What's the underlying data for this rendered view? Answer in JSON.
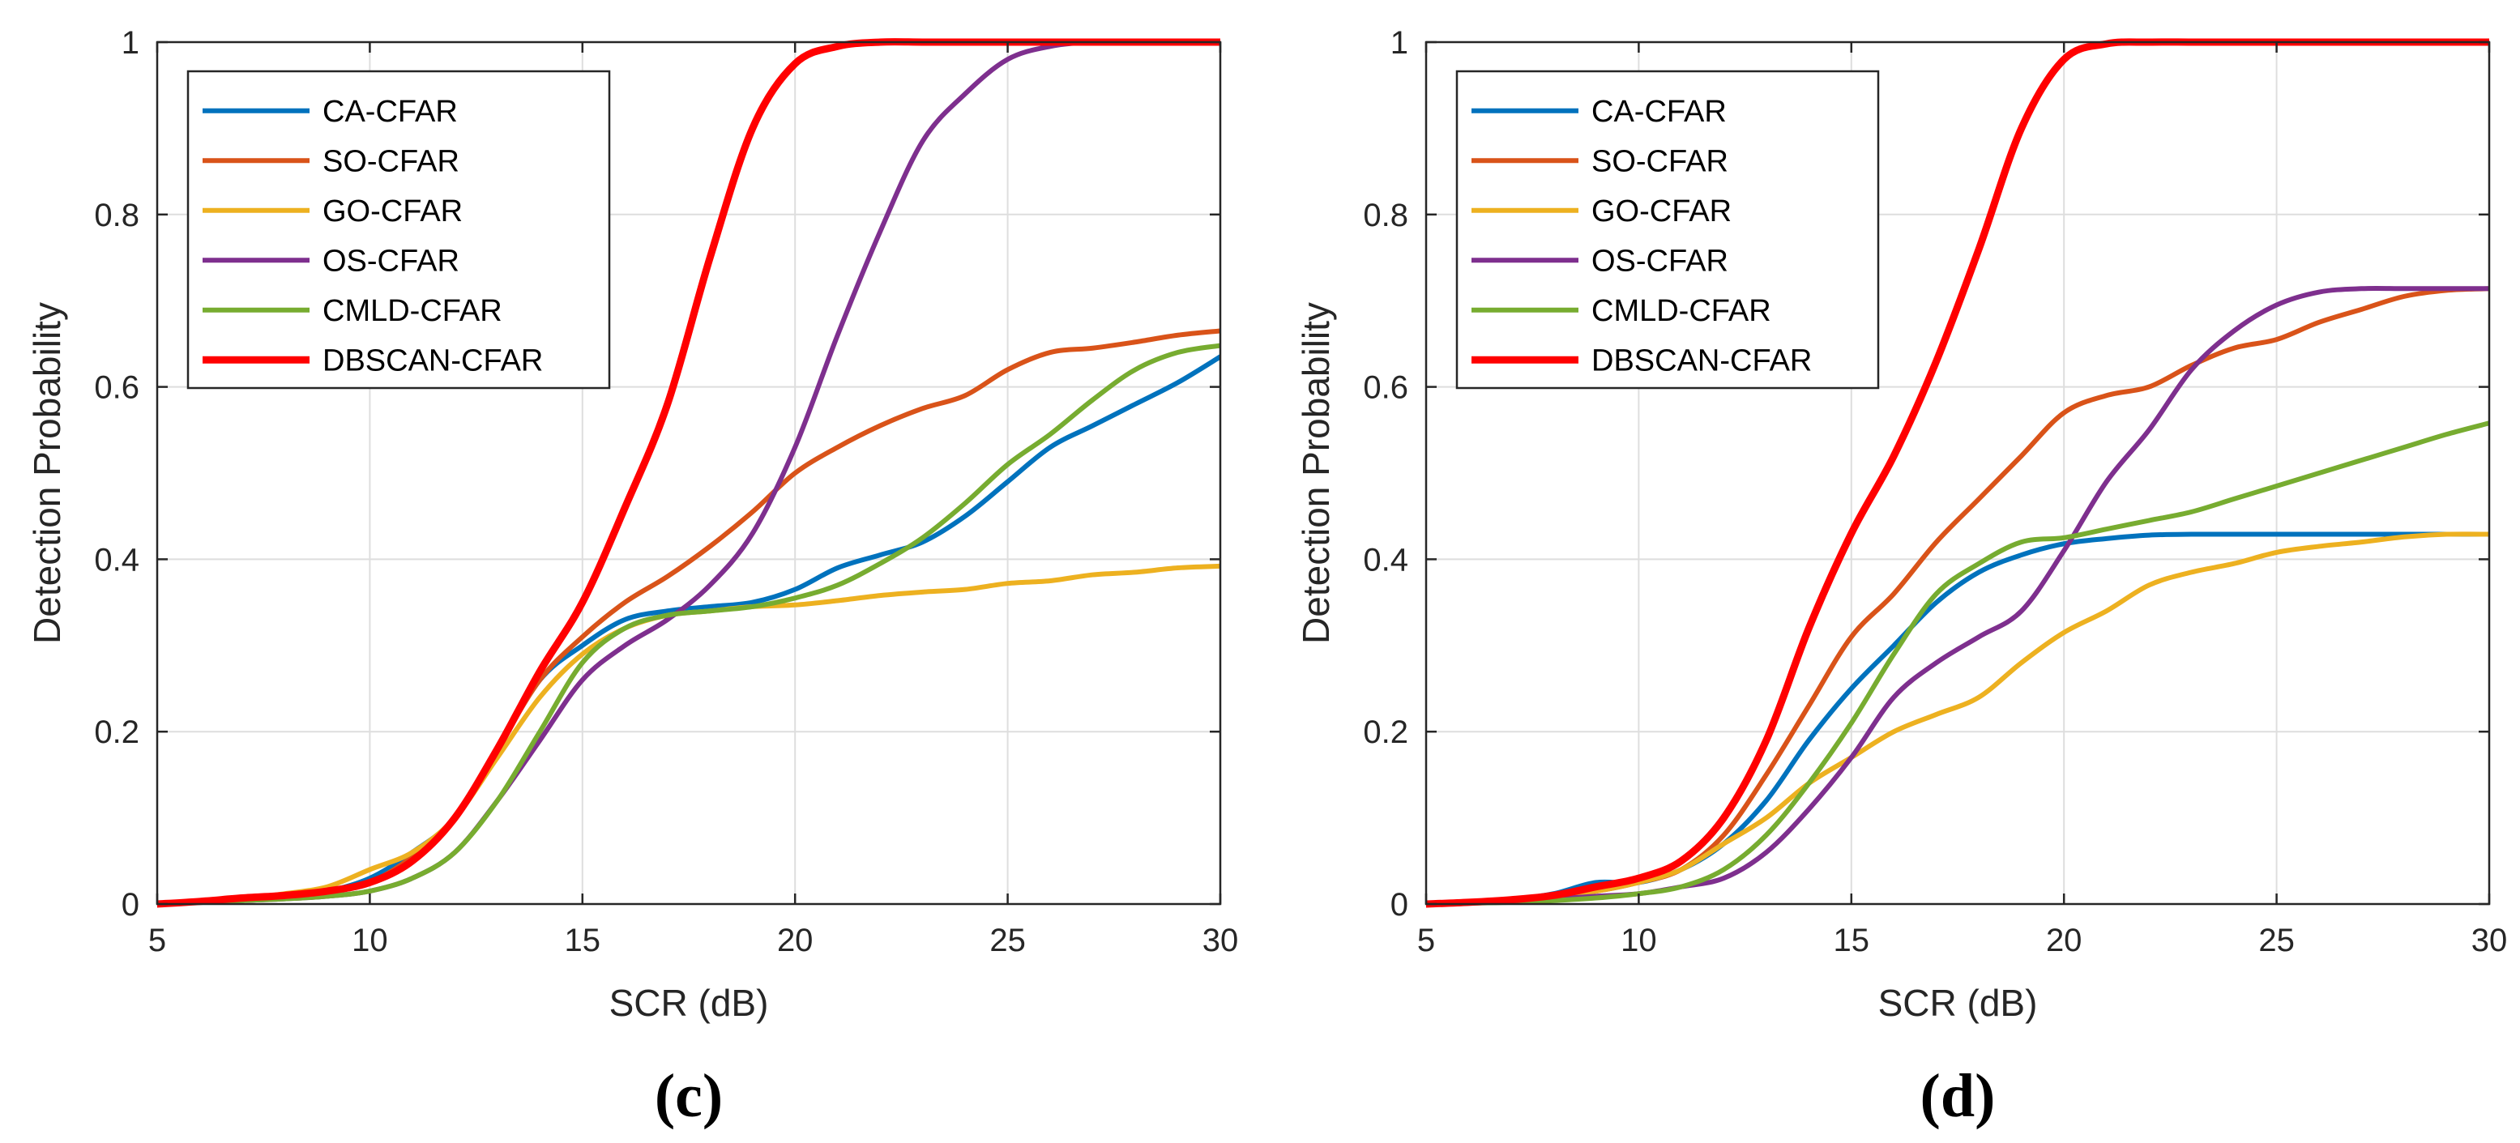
{
  "chart_data": [
    {
      "type": "line",
      "panel_label": "(c)",
      "xlabel": "SCR (dB)",
      "ylabel": "Detection Probability",
      "xlim": [
        5,
        30
      ],
      "ylim": [
        0,
        1
      ],
      "xticks": [
        5,
        10,
        15,
        20,
        25,
        30
      ],
      "yticks": [
        0,
        0.2,
        0.4,
        0.6,
        0.8,
        1
      ],
      "xtick_labels": [
        "5",
        "10",
        "15",
        "20",
        "25",
        "30"
      ],
      "ytick_labels": [
        "0",
        "0.2",
        "0.4",
        "0.6",
        "0.8",
        "1"
      ],
      "grid": true,
      "legend_position": "top-left",
      "series": [
        {
          "name": "CA-CFAR",
          "color": "#0072BD",
          "x": [
            5,
            6,
            7,
            8,
            9,
            10,
            11,
            12,
            13,
            14,
            15,
            16,
            17,
            18,
            19,
            20,
            21,
            22,
            23,
            24,
            25,
            26,
            27,
            28,
            29,
            30
          ],
          "y": [
            0,
            0.003,
            0.006,
            0.01,
            0.015,
            0.03,
            0.06,
            0.1,
            0.18,
            0.26,
            0.3,
            0.33,
            0.34,
            0.345,
            0.35,
            0.365,
            0.39,
            0.405,
            0.42,
            0.45,
            0.49,
            0.53,
            0.555,
            0.58,
            0.605,
            0.635
          ]
        },
        {
          "name": "SO-CFAR",
          "color": "#D95319",
          "x": [
            5,
            6,
            7,
            8,
            9,
            10,
            11,
            12,
            13,
            14,
            15,
            16,
            17,
            18,
            19,
            20,
            21,
            22,
            23,
            24,
            25,
            26,
            27,
            28,
            29,
            30
          ],
          "y": [
            0,
            0.003,
            0.006,
            0.01,
            0.014,
            0.025,
            0.055,
            0.1,
            0.18,
            0.26,
            0.31,
            0.35,
            0.38,
            0.415,
            0.455,
            0.5,
            0.53,
            0.555,
            0.575,
            0.59,
            0.62,
            0.64,
            0.645,
            0.652,
            0.66,
            0.665
          ]
        },
        {
          "name": "GO-CFAR",
          "color": "#EDB120",
          "x": [
            5,
            6,
            7,
            8,
            9,
            10,
            11,
            12,
            13,
            14,
            15,
            16,
            17,
            18,
            19,
            20,
            21,
            22,
            23,
            24,
            25,
            26,
            27,
            28,
            29,
            30
          ],
          "y": [
            0,
            0.003,
            0.006,
            0.012,
            0.02,
            0.04,
            0.06,
            0.1,
            0.17,
            0.24,
            0.29,
            0.32,
            0.335,
            0.34,
            0.345,
            0.347,
            0.352,
            0.358,
            0.362,
            0.365,
            0.372,
            0.375,
            0.382,
            0.385,
            0.39,
            0.392
          ]
        },
        {
          "name": "OS-CFAR",
          "color": "#7E2F8E",
          "x": [
            5,
            6,
            7,
            8,
            9,
            10,
            11,
            12,
            13,
            14,
            15,
            16,
            17,
            18,
            19,
            20,
            21,
            22,
            23,
            24,
            25,
            26,
            27,
            28,
            29,
            30
          ],
          "y": [
            0,
            0.002,
            0.004,
            0.006,
            0.009,
            0.015,
            0.03,
            0.06,
            0.12,
            0.19,
            0.26,
            0.3,
            0.33,
            0.37,
            0.43,
            0.53,
            0.66,
            0.78,
            0.885,
            0.94,
            0.98,
            0.995,
            1,
            1,
            1,
            1
          ]
        },
        {
          "name": "CMLD-CFAR",
          "color": "#77AC30",
          "x": [
            5,
            6,
            7,
            8,
            9,
            10,
            11,
            12,
            13,
            14,
            15,
            16,
            17,
            18,
            19,
            20,
            21,
            22,
            23,
            24,
            25,
            26,
            27,
            28,
            29,
            30
          ],
          "y": [
            0,
            0.002,
            0.004,
            0.006,
            0.009,
            0.015,
            0.03,
            0.06,
            0.12,
            0.2,
            0.28,
            0.32,
            0.335,
            0.34,
            0.345,
            0.355,
            0.37,
            0.395,
            0.425,
            0.465,
            0.51,
            0.545,
            0.585,
            0.62,
            0.64,
            0.648
          ]
        },
        {
          "name": "DBSCAN-CFAR",
          "color": "#FF0000",
          "x": [
            5,
            6,
            7,
            8,
            9,
            10,
            11,
            12,
            13,
            14,
            15,
            16,
            17,
            18,
            19,
            20,
            21,
            22,
            23,
            24,
            25,
            26,
            27,
            28,
            29,
            30
          ],
          "y": [
            0,
            0.003,
            0.007,
            0.01,
            0.015,
            0.025,
            0.05,
            0.1,
            0.18,
            0.27,
            0.35,
            0.46,
            0.58,
            0.75,
            0.9,
            0.975,
            0.995,
            1,
            1,
            1,
            1,
            1,
            1,
            1,
            1,
            1
          ]
        }
      ]
    },
    {
      "type": "line",
      "panel_label": "(d)",
      "xlabel": "SCR (dB)",
      "ylabel": "Detection Probability",
      "xlim": [
        5,
        30
      ],
      "ylim": [
        0,
        1
      ],
      "xticks": [
        5,
        10,
        15,
        20,
        25,
        30
      ],
      "yticks": [
        0,
        0.2,
        0.4,
        0.6,
        0.8,
        1
      ],
      "xtick_labels": [
        "5",
        "10",
        "15",
        "20",
        "25",
        "30"
      ],
      "ytick_labels": [
        "0",
        "0.2",
        "0.4",
        "0.6",
        "0.8",
        "1"
      ],
      "grid": true,
      "legend_position": "top-left",
      "series": [
        {
          "name": "CA-CFAR",
          "color": "#0072BD",
          "x": [
            5,
            6,
            7,
            8,
            9,
            10,
            11,
            12,
            13,
            14,
            15,
            16,
            17,
            18,
            19,
            20,
            21,
            22,
            23,
            24,
            25,
            26,
            27,
            28,
            29,
            30
          ],
          "y": [
            0,
            0.002,
            0.005,
            0.012,
            0.025,
            0.025,
            0.04,
            0.07,
            0.12,
            0.19,
            0.25,
            0.3,
            0.35,
            0.385,
            0.405,
            0.418,
            0.424,
            0.428,
            0.429,
            0.429,
            0.429,
            0.429,
            0.429,
            0.429,
            0.429,
            0.429
          ]
        },
        {
          "name": "SO-CFAR",
          "color": "#D95319",
          "x": [
            5,
            6,
            7,
            8,
            9,
            10,
            11,
            12,
            13,
            14,
            15,
            16,
            17,
            18,
            19,
            20,
            21,
            22,
            23,
            24,
            25,
            26,
            27,
            28,
            29,
            30
          ],
          "y": [
            0,
            0.002,
            0.005,
            0.01,
            0.015,
            0.025,
            0.04,
            0.08,
            0.15,
            0.23,
            0.31,
            0.36,
            0.42,
            0.47,
            0.52,
            0.57,
            0.59,
            0.6,
            0.625,
            0.645,
            0.655,
            0.675,
            0.69,
            0.705,
            0.712,
            0.714
          ]
        },
        {
          "name": "GO-CFAR",
          "color": "#EDB120",
          "x": [
            5,
            6,
            7,
            8,
            9,
            10,
            11,
            12,
            13,
            14,
            15,
            16,
            17,
            18,
            19,
            20,
            21,
            22,
            23,
            24,
            25,
            26,
            27,
            28,
            29,
            30
          ],
          "y": [
            0,
            0.002,
            0.005,
            0.01,
            0.015,
            0.025,
            0.04,
            0.07,
            0.1,
            0.14,
            0.17,
            0.2,
            0.22,
            0.24,
            0.28,
            0.315,
            0.34,
            0.37,
            0.385,
            0.395,
            0.408,
            0.415,
            0.42,
            0.426,
            0.429,
            0.429
          ]
        },
        {
          "name": "OS-CFAR",
          "color": "#7E2F8E",
          "x": [
            5,
            6,
            7,
            8,
            9,
            10,
            11,
            12,
            13,
            14,
            15,
            16,
            17,
            18,
            19,
            20,
            21,
            22,
            23,
            24,
            25,
            26,
            27,
            28,
            29,
            30
          ],
          "y": [
            0,
            0.001,
            0.003,
            0.006,
            0.009,
            0.012,
            0.02,
            0.03,
            0.06,
            0.11,
            0.17,
            0.24,
            0.28,
            0.31,
            0.34,
            0.41,
            0.49,
            0.55,
            0.62,
            0.665,
            0.695,
            0.71,
            0.714,
            0.714,
            0.714,
            0.714
          ]
        },
        {
          "name": "CMLD-CFAR",
          "color": "#77AC30",
          "x": [
            5,
            6,
            7,
            8,
            9,
            10,
            11,
            12,
            13,
            14,
            15,
            16,
            17,
            18,
            19,
            20,
            21,
            22,
            23,
            24,
            25,
            26,
            27,
            28,
            29,
            30
          ],
          "y": [
            0,
            0.001,
            0.002,
            0.004,
            0.007,
            0.012,
            0.02,
            0.04,
            0.08,
            0.14,
            0.21,
            0.29,
            0.36,
            0.395,
            0.42,
            0.425,
            0.435,
            0.445,
            0.455,
            0.47,
            0.485,
            0.5,
            0.515,
            0.53,
            0.545,
            0.558
          ]
        },
        {
          "name": "DBSCAN-CFAR",
          "color": "#FF0000",
          "x": [
            5,
            6,
            7,
            8,
            9,
            10,
            11,
            12,
            13,
            14,
            15,
            16,
            17,
            18,
            19,
            20,
            21,
            22,
            23,
            24,
            25,
            26,
            27,
            28,
            29,
            30
          ],
          "y": [
            0,
            0.002,
            0.005,
            0.01,
            0.02,
            0.03,
            0.05,
            0.1,
            0.19,
            0.32,
            0.43,
            0.52,
            0.63,
            0.76,
            0.9,
            0.98,
            0.998,
            1,
            1,
            1,
            1,
            1,
            1,
            1,
            1,
            1
          ]
        }
      ]
    }
  ]
}
